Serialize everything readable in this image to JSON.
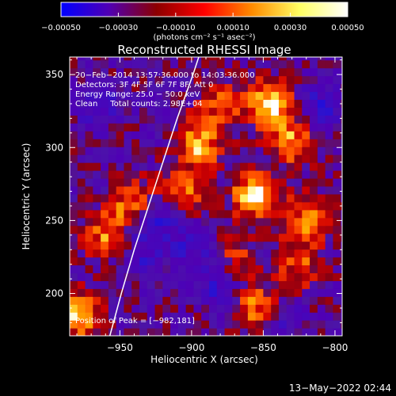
{
  "chart_data": {
    "type": "heatmap",
    "title": "Reconstructed RHESSI Image",
    "xlabel": "Heliocentric X (arcsec)",
    "ylabel": "Heliocentric Y (arcsec)",
    "xlim": [
      -985,
      -795
    ],
    "ylim": [
      171,
      362
    ],
    "x_ticks": [
      -950,
      -900,
      -850,
      -800
    ],
    "y_ticks": [
      200,
      250,
      300,
      350
    ],
    "x_tick_labels": [
      "−950",
      "−900",
      "−850",
      "−800"
    ],
    "y_tick_labels": [
      "200",
      "250",
      "300",
      "350"
    ],
    "colorbar": {
      "range": [
        -0.0005,
        0.0005
      ],
      "ticks": [
        -0.0005,
        -0.0003,
        -0.0001,
        0.0001,
        0.0003,
        0.0005
      ],
      "tick_labels": [
        "−0.00050",
        "−0.00030",
        "−0.00010",
        "0.00010",
        "0.00030",
        "0.00050"
      ],
      "unit_label": "(photons cm⁻² s⁻¹ asec⁻²)",
      "colors": [
        "#0000ff",
        "#5000b4",
        "#8c0000",
        "#ff0000",
        "#ff8c00",
        "#ffff64",
        "#ffffff"
      ]
    },
    "annotations": [
      "20−Feb−2014 13:57:36.000 to 14:03:36.000",
      "Detectors: 3F 4F 5F 6F 7F 8F, Att 0",
      "Energy Range: 25.0 − 50.0 keV",
      "Clean     Total counts: 2.98E+04"
    ],
    "peak_label": "Position of Peak = [−982,181]",
    "bright_regions": [
      {
        "x": -855,
        "y": 268,
        "value": 0.0005
      },
      {
        "x": -845,
        "y": 330,
        "value": 0.00045
      },
      {
        "x": -895,
        "y": 302,
        "value": 0.0004
      },
      {
        "x": -940,
        "y": 262,
        "value": 0.00035
      },
      {
        "x": -960,
        "y": 240,
        "value": 0.0003
      },
      {
        "x": -830,
        "y": 305,
        "value": 0.00035
      },
      {
        "x": -855,
        "y": 190,
        "value": 0.00035
      },
      {
        "x": -905,
        "y": 268,
        "value": 0.0003
      },
      {
        "x": -820,
        "y": 250,
        "value": 0.0003
      },
      {
        "x": -980,
        "y": 185,
        "value": 0.0004
      },
      {
        "x": -880,
        "y": 330,
        "value": 0.00025
      },
      {
        "x": -825,
        "y": 220,
        "value": 0.00025
      },
      {
        "x": -870,
        "y": 225,
        "value": 0.0002
      }
    ],
    "dark_regions": [
      {
        "x": -925,
        "y": 252,
        "value": -0.0003
      },
      {
        "x": -880,
        "y": 205,
        "value": -0.00025
      },
      {
        "x": -900,
        "y": 232,
        "value": -0.0002
      },
      {
        "x": -812,
        "y": 328,
        "value": -0.00025
      },
      {
        "x": -935,
        "y": 225,
        "value": -0.0002
      },
      {
        "x": -965,
        "y": 330,
        "value": -0.0002
      },
      {
        "x": -840,
        "y": 180,
        "value": -0.0002
      }
    ],
    "limb_curve": [
      {
        "x": -957,
        "y": 171
      },
      {
        "x": -949,
        "y": 200
      },
      {
        "x": -940,
        "y": 230
      },
      {
        "x": -930,
        "y": 260
      },
      {
        "x": -920,
        "y": 290
      },
      {
        "x": -910,
        "y": 320
      },
      {
        "x": -899,
        "y": 350
      },
      {
        "x": -895,
        "y": 362
      }
    ]
  },
  "footer": {
    "date_label": "13−May−2022 02:44"
  }
}
